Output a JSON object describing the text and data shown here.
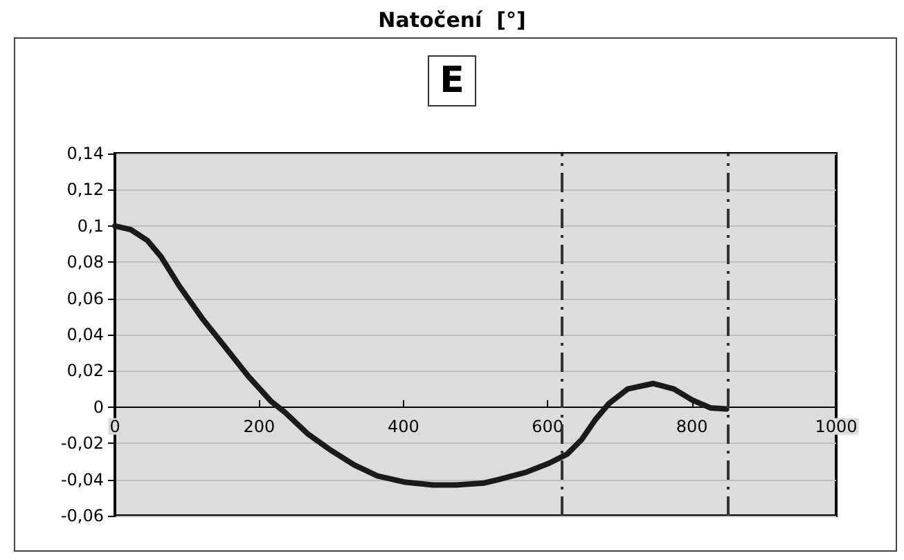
{
  "chart_data": {
    "type": "line",
    "title": "Natočení  [°]",
    "annotations": [
      "E"
    ],
    "x": [
      0,
      22,
      45,
      64,
      89,
      121,
      153,
      185,
      217,
      236,
      268,
      300,
      332,
      364,
      403,
      441,
      473,
      511,
      532,
      570,
      602,
      627,
      647,
      666,
      685,
      711,
      746,
      775,
      800,
      826,
      848
    ],
    "series": [
      {
        "color": "#1a1a1a",
        "values": [
          0.1,
          0.098,
          0.092,
          0.083,
          0.067,
          0.049,
          0.033,
          0.017,
          0.003,
          -0.003,
          -0.015,
          -0.024,
          -0.032,
          -0.038,
          -0.0415,
          -0.043,
          -0.043,
          -0.042,
          -0.04,
          -0.036,
          -0.031,
          -0.026,
          -0.018,
          -0.007,
          0.002,
          0.01,
          0.013,
          0.01,
          0.004,
          -0.0005,
          -0.001
        ]
      }
    ],
    "xlim": [
      0,
      1000
    ],
    "xticks": [
      0,
      200,
      400,
      600,
      800,
      1000
    ],
    "ylim": [
      -0.06,
      0.14
    ],
    "yticks": [
      {
        "value": -0.06,
        "label": "-0,06"
      },
      {
        "value": -0.04,
        "label": "-0,04"
      },
      {
        "value": -0.02,
        "label": "-0,02"
      },
      {
        "value": 0,
        "label": "0"
      },
      {
        "value": 0.02,
        "label": "0,02"
      },
      {
        "value": 0.04,
        "label": "0,04"
      },
      {
        "value": 0.06,
        "label": "0,06"
      },
      {
        "value": 0.08,
        "label": "0,08"
      },
      {
        "value": 0.1,
        "label": "0,1"
      },
      {
        "value": 0.12,
        "label": "0,12"
      },
      {
        "value": 0.14,
        "label": "0,14"
      }
    ],
    "ref_lines": [
      {
        "axis": "x",
        "value": 620,
        "color": "#333333",
        "line_style": "dashed"
      },
      {
        "axis": "x",
        "value": 850,
        "color": "#333333",
        "line_style": "dashed"
      }
    ],
    "grid": "y",
    "marker": "none",
    "line_style": "solid"
  }
}
